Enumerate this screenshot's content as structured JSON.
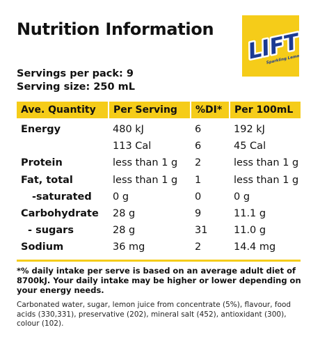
{
  "title": "Nutrition Information",
  "logo": {
    "brand": "LIFT",
    "tagline": "Sparkling Lemon Flavour"
  },
  "servings": {
    "per_pack": "Servings per pack: 9",
    "size": "Serving size: 250 mL"
  },
  "table": {
    "headers": [
      "Ave. Quantity",
      "Per Serving",
      "%DI*",
      "Per 100mL"
    ],
    "rows": [
      {
        "label": "Energy",
        "per_serving": "480 kJ",
        "di": "6",
        "per_100": "192 kJ"
      },
      {
        "label": "",
        "per_serving": "113 Cal",
        "di": "6",
        "per_100": "45 Cal"
      },
      {
        "label": "Protein",
        "per_serving": "less than 1 g",
        "di": "2",
        "per_100": "less than 1 g"
      },
      {
        "label": "Fat, total",
        "per_serving": "less than 1 g",
        "di": "1",
        "per_100": "less than 1 g"
      },
      {
        "label": "-saturated",
        "per_serving": "0 g",
        "di": "0",
        "per_100": "0 g"
      },
      {
        "label": "Carbohydrate",
        "per_serving": "28 g",
        "di": "9",
        "per_100": "11.1 g"
      },
      {
        "label": "- sugars",
        "per_serving": "28 g",
        "di": "31",
        "per_100": "11.0 g"
      },
      {
        "label": "Sodium",
        "per_serving": "36 mg",
        "di": "2",
        "per_100": "14.4 mg"
      }
    ]
  },
  "footnote": "*% daily intake per serve is based on an average adult diet of 8700kJ. Your daily intake may be higher or lower depending on your energy needs.",
  "ingredients": "Carbonated water, sugar, lemon juice from concentrate (5%), flavour, food acids (330,331), preservative (202), mineral salt (452), antioxidant (300), colour (102).",
  "colors": {
    "accent": "#f5cc19",
    "logo_text": "#1b3a93"
  }
}
